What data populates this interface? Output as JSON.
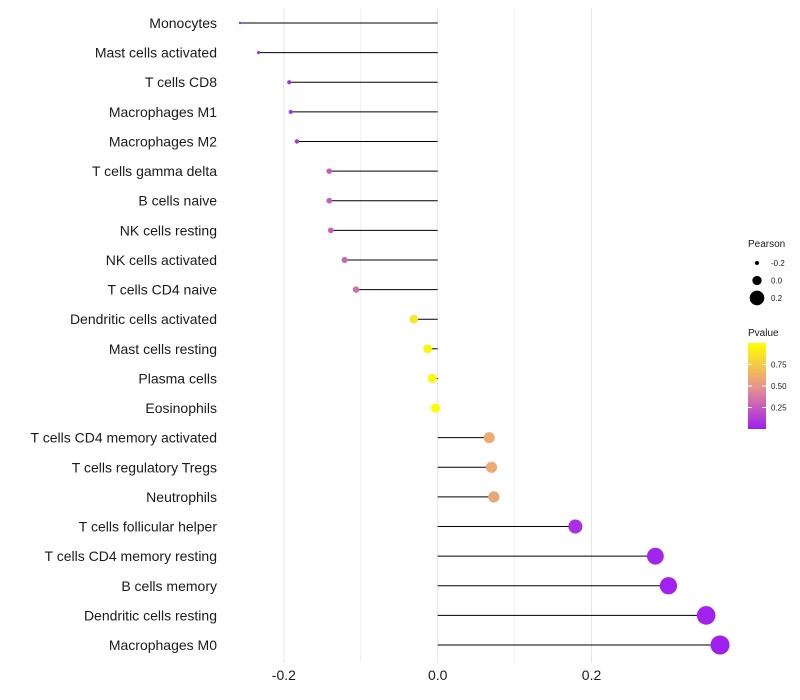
{
  "chart_data": {
    "type": "lollipop",
    "categories": [
      "Monocytes",
      "Mast cells activated",
      "T cells CD8",
      "Macrophages M1",
      "Macrophages M2",
      "T cells gamma delta",
      "B cells naive",
      "NK cells resting",
      "NK cells activated",
      "T cells CD4 naive",
      "Dendritic cells activated",
      "Mast cells resting",
      "Plasma cells",
      "Eosinophils",
      "T cells CD4 memory activated",
      "T cells regulatory  Tregs ",
      "Neutrophils",
      "T cells follicular helper",
      "T cells CD4 memory resting",
      "B cells memory",
      "Dendritic cells resting",
      "Macrophages M0"
    ],
    "pearson": [
      -0.257,
      -0.233,
      -0.193,
      -0.191,
      -0.183,
      -0.141,
      -0.141,
      -0.139,
      -0.121,
      -0.106,
      -0.031,
      -0.013,
      -0.007,
      -0.003,
      0.067,
      0.07,
      0.073,
      0.179,
      0.283,
      0.3,
      0.349,
      0.367
    ],
    "pvalue": [
      0.03,
      0.05,
      0.08,
      0.09,
      0.1,
      0.25,
      0.25,
      0.26,
      0.3,
      0.33,
      0.88,
      0.95,
      0.97,
      0.99,
      0.6,
      0.6,
      0.58,
      0.06,
      0.02,
      0.01,
      0.004,
      0.002
    ],
    "xlim": [
      -0.27,
      0.38
    ],
    "xticks": [
      -0.2,
      0.0,
      0.2
    ],
    "xtick_labels": [
      "-0.2",
      "0.0",
      "0.2"
    ],
    "legend": {
      "size_title": "Pearson",
      "size_items": [
        {
          "label": "-0.2",
          "value": -0.2
        },
        {
          "label": "0.0",
          "value": 0.0
        },
        {
          "label": "0.2",
          "value": 0.2
        }
      ],
      "color_title": "Pvalue",
      "color_ticks": [
        {
          "label": "0.75",
          "value": 0.75
        },
        {
          "label": "0.50",
          "value": 0.5
        },
        {
          "label": "0.25",
          "value": 0.25
        }
      ],
      "color_range": [
        0.0,
        1.0
      ],
      "color_low": "#a020f0",
      "color_mid": "#e8968c",
      "color_high": "#ffff00"
    }
  }
}
